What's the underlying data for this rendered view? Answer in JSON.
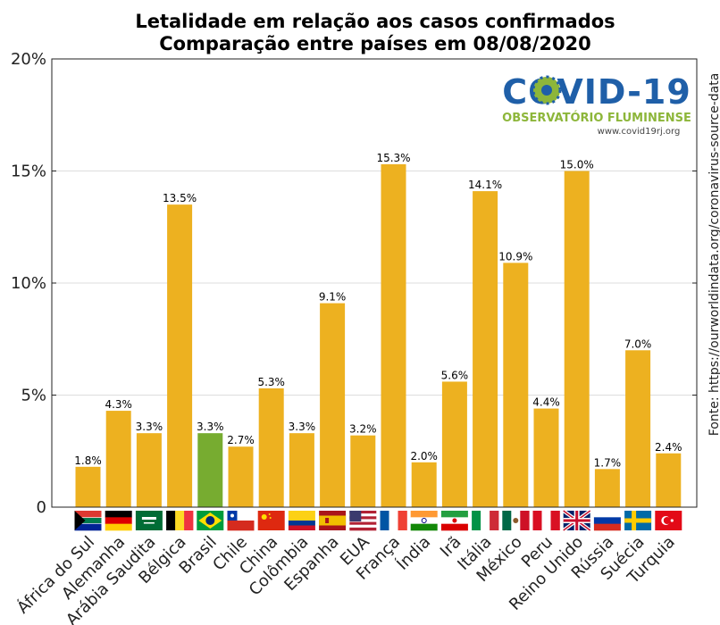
{
  "chart_data": {
    "type": "bar",
    "title": "Letalidade em relação aos casos confirmados",
    "subtitle": "Comparação entre países em 08/08/2020",
    "xlabel": "",
    "ylabel": "",
    "ylim": [
      0,
      20
    ],
    "yticks": [
      0,
      5,
      10,
      15,
      20
    ],
    "ytick_labels": [
      "0",
      "5%",
      "10%",
      "15%",
      "20%"
    ],
    "grid": true,
    "categories": [
      "África do Sul",
      "Alemanha",
      "Arábia Saudita",
      "Bélgica",
      "Brasil",
      "Chile",
      "China",
      "Colômbia",
      "Espanha",
      "EUA",
      "França",
      "Índia",
      "Irã",
      "Itália",
      "México",
      "Peru",
      "Reino Unido",
      "Rússia",
      "Suécia",
      "Turquia"
    ],
    "values": [
      1.8,
      4.3,
      3.3,
      13.5,
      3.3,
      2.7,
      5.3,
      3.3,
      9.1,
      3.2,
      15.3,
      2.0,
      5.6,
      14.1,
      10.9,
      4.4,
      15.0,
      1.7,
      7.0,
      2.4
    ],
    "value_labels": [
      "1.8%",
      "4.3%",
      "3.3%",
      "13.5%",
      "3.3%",
      "2.7%",
      "5.3%",
      "3.3%",
      "9.1%",
      "3.2%",
      "15.3%",
      "2.0%",
      "5.6%",
      "14.1%",
      "10.9%",
      "4.4%",
      "15.0%",
      "1.7%",
      "7.0%",
      "2.4%"
    ],
    "highlight_category": "Brasil",
    "colors": {
      "bar": "#EDB120",
      "highlight": "#77AC30",
      "grid": "#dddddd"
    },
    "source": "Fonte: https://ourworldindata.org/coronavirus-source-data"
  },
  "logo": {
    "title": "COVID-19",
    "subtitle": "OBSERVATÓRIO FLUMINENSE",
    "url": "www.covid19rj.org",
    "colors": {
      "title": "#1f5fa8",
      "subtitle": "#8db63a",
      "url": "#444444"
    }
  },
  "flags": [
    "south-africa-flag-icon",
    "germany-flag-icon",
    "saudi-arabia-flag-icon",
    "belgium-flag-icon",
    "brazil-flag-icon",
    "chile-flag-icon",
    "china-flag-icon",
    "colombia-flag-icon",
    "spain-flag-icon",
    "usa-flag-icon",
    "france-flag-icon",
    "india-flag-icon",
    "iran-flag-icon",
    "italy-flag-icon",
    "mexico-flag-icon",
    "peru-flag-icon",
    "uk-flag-icon",
    "russia-flag-icon",
    "sweden-flag-icon",
    "turkey-flag-icon"
  ]
}
